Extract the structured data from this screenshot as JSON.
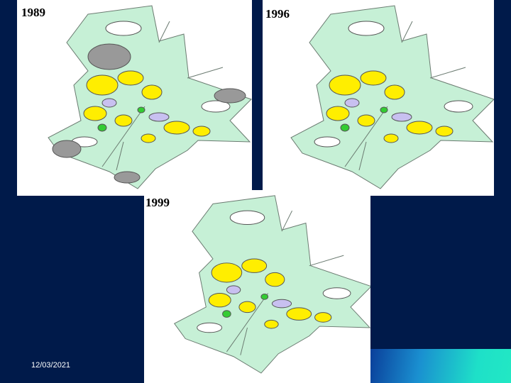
{
  "maps": [
    {
      "label": "1989"
    },
    {
      "label": "1996"
    },
    {
      "label": "1999"
    }
  ],
  "footer": {
    "date": "12/03/2021"
  }
}
